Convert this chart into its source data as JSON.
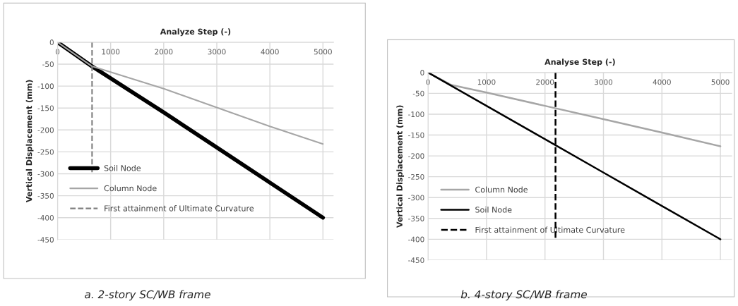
{
  "chart_data": [
    {
      "type": "line",
      "xlabel": "Analyze Step (-)",
      "ylabel": "Vertical Displacement (mm)",
      "xlim": [
        0,
        5200
      ],
      "ylim": [
        -450,
        0
      ],
      "xticks": [
        0,
        1000,
        2000,
        3000,
        4000,
        5000
      ],
      "yticks": [
        0,
        -50,
        -100,
        -150,
        -200,
        -250,
        -300,
        -350,
        -400,
        -450
      ],
      "grid": true,
      "legend": "bottom left",
      "annotations": [
        "a. 2-story SC/WB frame"
      ],
      "series": [
        {
          "name": "Soil Node",
          "color": "#000000",
          "x": [
            0,
            650,
            2000,
            3000,
            4000,
            5000
          ],
          "values": [
            0,
            -55,
            -160,
            -240,
            -320,
            -400
          ],
          "line_style": "solid"
        },
        {
          "name": "Column Node",
          "color": "#a6a6a6",
          "x": [
            0,
            650,
            2000,
            3000,
            4000,
            5000
          ],
          "values": [
            0,
            -55,
            -106,
            -149,
            -192,
            -232
          ],
          "line_style": "solid"
        },
        {
          "name": "First attainment of Ultimate Curvature",
          "color": "#7f7f7f",
          "x": [
            650,
            650
          ],
          "values": [
            0,
            -300
          ],
          "line_style": "dashed"
        }
      ]
    },
    {
      "type": "line",
      "xlabel": "Analyse Step (-)",
      "ylabel": "Vertical Displacement (mm)",
      "xlim": [
        0,
        5200
      ],
      "ylim": [
        -450,
        0
      ],
      "xticks": [
        0,
        1000,
        2000,
        3000,
        4000,
        5000
      ],
      "yticks": [
        0,
        -50,
        -100,
        -150,
        -200,
        -250,
        -300,
        -350,
        -400,
        -450
      ],
      "grid": true,
      "legend": "bottom left",
      "annotations": [
        "b. 4-story SC/WB frame"
      ],
      "series": [
        {
          "name": "Column Node",
          "color": "#a6a6a6",
          "x": [
            0,
            400,
            1000,
            2000,
            3000,
            4000,
            5000
          ],
          "values": [
            0,
            -30,
            -48,
            -80,
            -112,
            -144,
            -177
          ],
          "line_style": "solid"
        },
        {
          "name": "Soil Node",
          "color": "#000000",
          "x": [
            0,
            1000,
            2000,
            3000,
            4000,
            5000
          ],
          "values": [
            0,
            -80,
            -160,
            -240,
            -320,
            -400
          ],
          "line_style": "solid"
        },
        {
          "name": "First attainment of Ultimate Curvature",
          "color": "#000000",
          "x": [
            2180,
            2180
          ],
          "values": [
            0,
            -400
          ],
          "line_style": "dashed"
        }
      ]
    }
  ]
}
